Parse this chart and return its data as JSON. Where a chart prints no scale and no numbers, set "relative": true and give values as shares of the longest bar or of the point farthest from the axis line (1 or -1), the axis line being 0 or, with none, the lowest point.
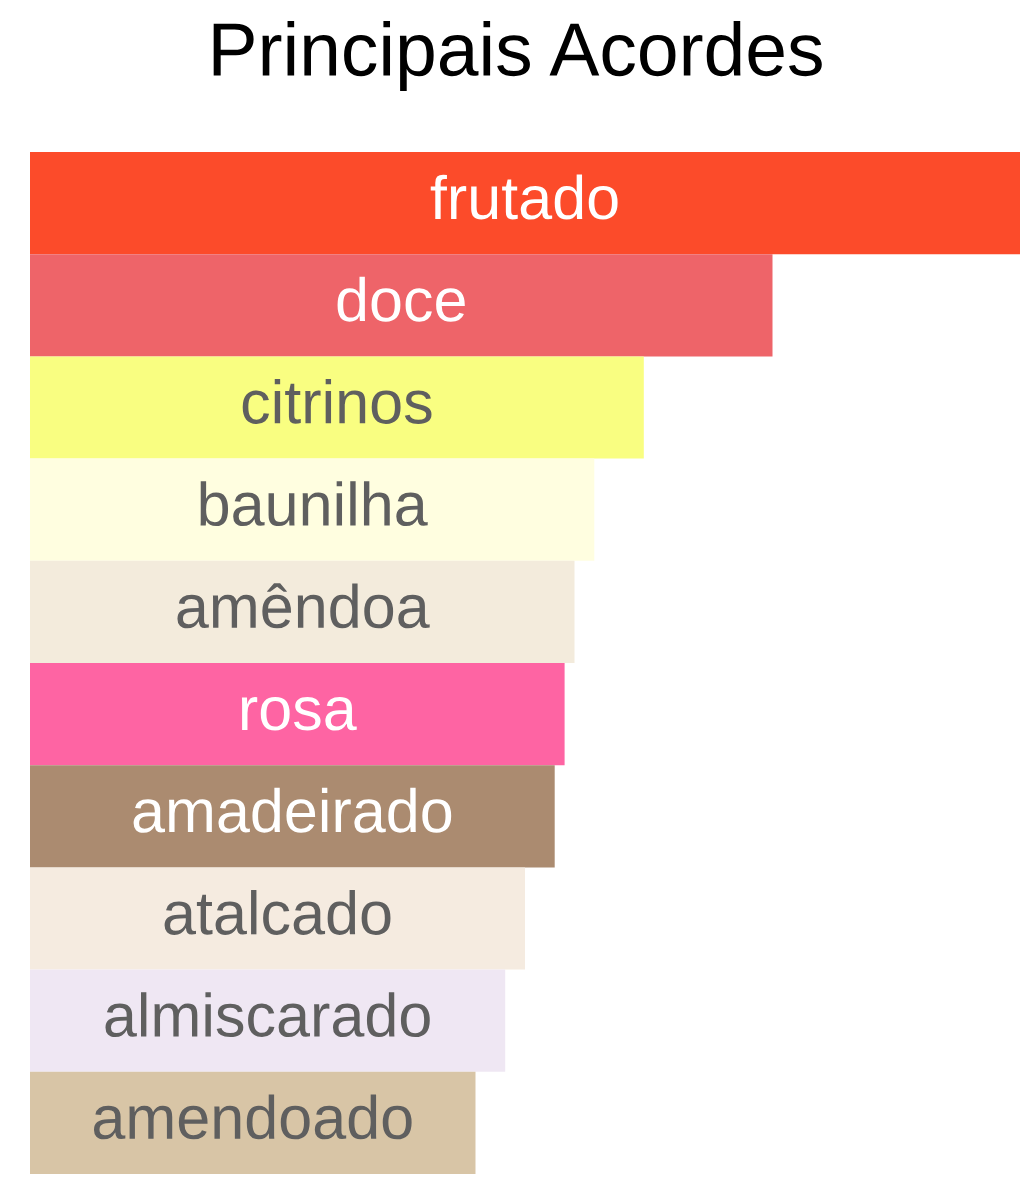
{
  "chart_data": {
    "type": "bar",
    "orientation": "horizontal",
    "relative": true,
    "title": "Principais Acordes",
    "categories": [
      "frutado",
      "doce",
      "citrinos",
      "baunilha",
      "amêndoa",
      "rosa",
      "amadeirado",
      "atalcado",
      "almiscarado",
      "amendoado"
    ],
    "values": [
      1,
      0.75,
      0.62,
      0.57,
      0.55,
      0.54,
      0.53,
      0.5,
      0.48,
      0.45
    ],
    "colors": [
      "#fc4b2a",
      "#ee6469",
      "#f9fe81",
      "#fffee0",
      "#f3ebdc",
      "#fe64a3",
      "#ab8b70",
      "#f5ebe0",
      "#efe7f3",
      "#d8c5a6"
    ]
  }
}
